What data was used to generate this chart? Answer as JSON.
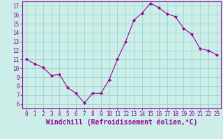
{
  "x": [
    0,
    1,
    2,
    3,
    4,
    5,
    6,
    7,
    8,
    9,
    10,
    11,
    12,
    13,
    14,
    15,
    16,
    17,
    18,
    19,
    20,
    21,
    22,
    23
  ],
  "y": [
    11.0,
    10.5,
    10.1,
    9.2,
    9.3,
    7.8,
    7.2,
    6.1,
    7.2,
    7.2,
    8.7,
    11.0,
    13.0,
    15.4,
    16.2,
    17.3,
    16.8,
    16.1,
    15.8,
    14.5,
    13.8,
    12.2,
    12.0,
    11.5
  ],
  "line_color": "#990099",
  "marker": "D",
  "marker_size": 2.0,
  "bg_color": "#cceee8",
  "grid_color": "#99cccc",
  "xlabel": "Windchill (Refroidissement éolien,°C)",
  "xlabel_color": "#990099",
  "xlim": [
    -0.5,
    23.5
  ],
  "ylim": [
    5.5,
    17.5
  ],
  "yticks": [
    6,
    7,
    8,
    9,
    10,
    11,
    12,
    13,
    14,
    15,
    16,
    17
  ],
  "xticks": [
    0,
    1,
    2,
    3,
    4,
    5,
    6,
    7,
    8,
    9,
    10,
    11,
    12,
    13,
    14,
    15,
    16,
    17,
    18,
    19,
    20,
    21,
    22,
    23
  ],
  "tick_color": "#990099",
  "tick_label_size": 5.5,
  "xlabel_size": 7.0,
  "spine_color": "#990099",
  "linewidth": 0.8
}
